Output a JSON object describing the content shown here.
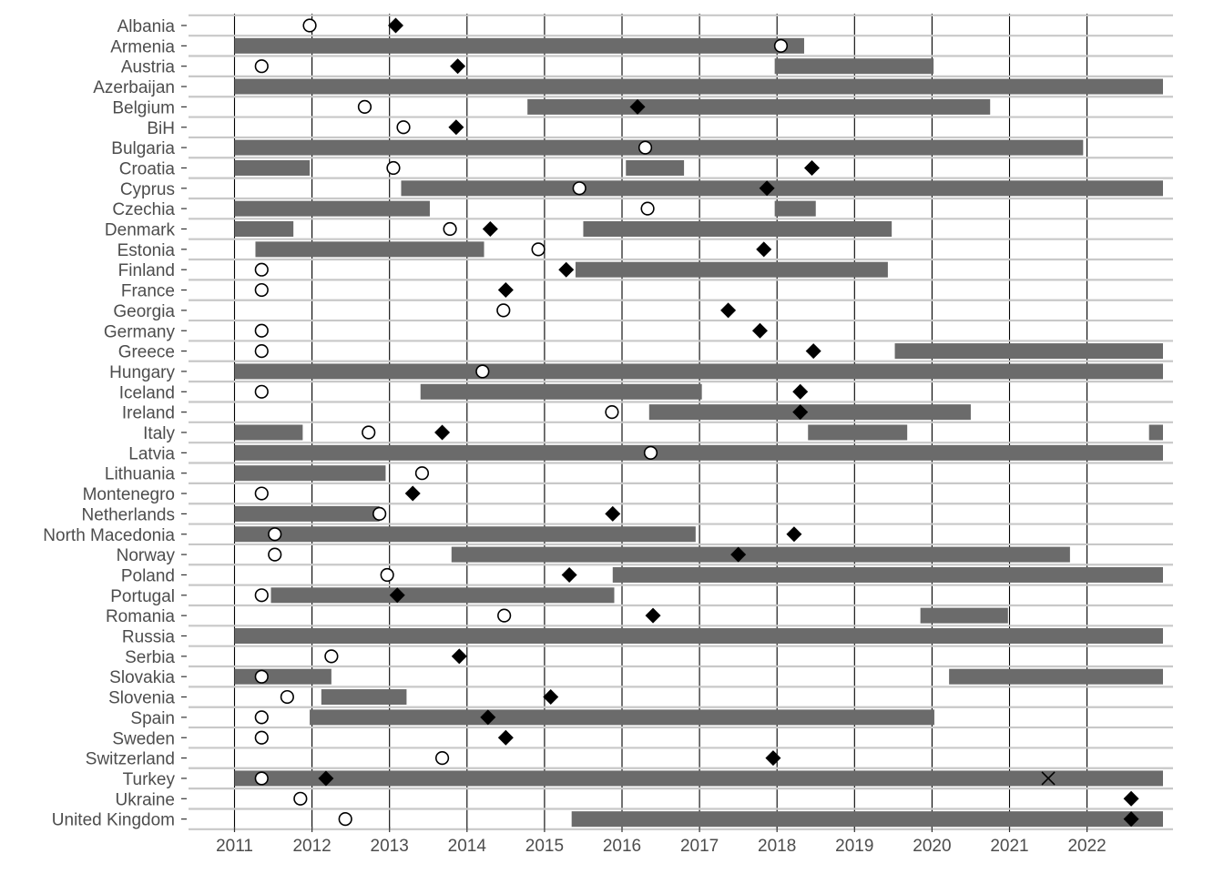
{
  "chart_data": {
    "type": "timeline",
    "title": "",
    "xlabel": "",
    "ylabel": "",
    "xlim": [
      2010.55,
      2023.2
    ],
    "x_ticks": [
      "2011",
      "2012",
      "2013",
      "2014",
      "2015",
      "2016",
      "2017",
      "2018",
      "2019",
      "2020",
      "2021",
      "2022"
    ],
    "grid": "horizontal row lines, vertical lines at each year",
    "legend": "none",
    "colors": {
      "bar": "#6b6b6b",
      "marker": "#000000",
      "rowline": "#c8c8c8",
      "vline": "#000000"
    },
    "rows": [
      {
        "label": "Albania",
        "bars": [],
        "circle": 2011.97,
        "diamond": 2013.08,
        "cross": null
      },
      {
        "label": "Armenia",
        "bars": [
          [
            2011.0,
            2018.35
          ]
        ],
        "circle": 2018.05,
        "diamond": null,
        "cross": null
      },
      {
        "label": "Austria",
        "bars": [
          [
            2017.97,
            2020.02
          ]
        ],
        "circle": 2011.35,
        "diamond": 2013.88,
        "cross": null
      },
      {
        "label": "Azerbaijan",
        "bars": [
          [
            2011.0,
            2022.98
          ]
        ],
        "circle": null,
        "diamond": null,
        "cross": null
      },
      {
        "label": "Belgium",
        "bars": [
          [
            2014.78,
            2020.75
          ]
        ],
        "circle": 2012.68,
        "diamond": 2016.2,
        "cross": null
      },
      {
        "label": "BiH",
        "bars": [],
        "circle": 2013.18,
        "diamond": 2013.86,
        "cross": null
      },
      {
        "label": "Bulgaria",
        "bars": [
          [
            2011.0,
            2021.95
          ]
        ],
        "circle": 2016.3,
        "diamond": null,
        "cross": null
      },
      {
        "label": "Croatia",
        "bars": [
          [
            2011.0,
            2011.97
          ],
          [
            2016.05,
            2016.8
          ]
        ],
        "circle": 2013.05,
        "diamond": 2018.45,
        "cross": null
      },
      {
        "label": "Cyprus",
        "bars": [
          [
            2013.15,
            2022.98
          ]
        ],
        "circle": 2015.45,
        "diamond": 2017.87,
        "cross": null
      },
      {
        "label": "Czechia",
        "bars": [
          [
            2011.0,
            2013.52
          ],
          [
            2017.97,
            2018.5
          ]
        ],
        "circle": 2016.33,
        "diamond": null,
        "cross": null
      },
      {
        "label": "Denmark",
        "bars": [
          [
            2011.0,
            2011.76
          ],
          [
            2015.5,
            2019.48
          ]
        ],
        "circle": 2013.78,
        "diamond": 2014.3,
        "cross": null
      },
      {
        "label": "Estonia",
        "bars": [
          [
            2011.27,
            2014.22
          ]
        ],
        "circle": 2014.92,
        "diamond": 2017.83,
        "cross": null
      },
      {
        "label": "Finland",
        "bars": [
          [
            2015.4,
            2019.43
          ]
        ],
        "circle": 2011.35,
        "diamond": 2015.28,
        "cross": null
      },
      {
        "label": "France",
        "bars": [],
        "circle": 2011.35,
        "diamond": 2014.5,
        "cross": null
      },
      {
        "label": "Georgia",
        "bars": [],
        "circle": 2014.47,
        "diamond": 2017.37,
        "cross": null
      },
      {
        "label": "Germany",
        "bars": [],
        "circle": 2011.35,
        "diamond": 2017.78,
        "cross": null
      },
      {
        "label": "Greece",
        "bars": [
          [
            2019.52,
            2022.98
          ]
        ],
        "circle": 2011.35,
        "diamond": 2018.47,
        "cross": null
      },
      {
        "label": "Hungary",
        "bars": [
          [
            2011.0,
            2022.98
          ]
        ],
        "circle": 2014.2,
        "diamond": null,
        "cross": null
      },
      {
        "label": "Iceland",
        "bars": [
          [
            2013.4,
            2017.03
          ]
        ],
        "circle": 2011.35,
        "diamond": 2018.3,
        "cross": null
      },
      {
        "label": "Ireland",
        "bars": [
          [
            2016.35,
            2020.5
          ]
        ],
        "circle": 2015.87,
        "diamond": 2018.3,
        "cross": null
      },
      {
        "label": "Italy",
        "bars": [
          [
            2011.0,
            2011.88
          ],
          [
            2018.4,
            2019.68
          ],
          [
            2022.8,
            2022.98
          ]
        ],
        "circle": 2012.73,
        "diamond": 2013.68,
        "cross": null
      },
      {
        "label": "Latvia",
        "bars": [
          [
            2011.0,
            2022.98
          ]
        ],
        "circle": 2016.37,
        "diamond": null,
        "cross": null
      },
      {
        "label": "Lithuania",
        "bars": [
          [
            2011.0,
            2012.95
          ]
        ],
        "circle": 2013.42,
        "diamond": null,
        "cross": null
      },
      {
        "label": "Montenegro",
        "bars": [],
        "circle": 2011.35,
        "diamond": 2013.3,
        "cross": null
      },
      {
        "label": "Netherlands",
        "bars": [
          [
            2011.0,
            2012.87
          ]
        ],
        "circle": 2012.87,
        "diamond": 2015.88,
        "cross": null
      },
      {
        "label": "North Macedonia",
        "bars": [
          [
            2011.0,
            2016.95
          ]
        ],
        "circle": 2011.52,
        "diamond": 2018.22,
        "cross": null
      },
      {
        "label": "Norway",
        "bars": [
          [
            2013.8,
            2021.78
          ]
        ],
        "circle": 2011.52,
        "diamond": 2017.5,
        "cross": null
      },
      {
        "label": "Poland",
        "bars": [
          [
            2015.88,
            2022.98
          ]
        ],
        "circle": 2012.97,
        "diamond": 2015.32,
        "cross": null
      },
      {
        "label": "Portugal",
        "bars": [
          [
            2011.47,
            2015.9
          ]
        ],
        "circle": 2011.35,
        "diamond": 2013.1,
        "cross": null
      },
      {
        "label": "Romania",
        "bars": [
          [
            2019.85,
            2020.98
          ]
        ],
        "circle": 2014.48,
        "diamond": 2016.4,
        "cross": null
      },
      {
        "label": "Russia",
        "bars": [
          [
            2011.0,
            2022.98
          ]
        ],
        "circle": null,
        "diamond": null,
        "cross": null
      },
      {
        "label": "Serbia",
        "bars": [],
        "circle": 2012.25,
        "diamond": 2013.9,
        "cross": null
      },
      {
        "label": "Slovakia",
        "bars": [
          [
            2011.0,
            2012.25
          ],
          [
            2020.22,
            2022.98
          ]
        ],
        "circle": 2011.35,
        "diamond": null,
        "cross": null
      },
      {
        "label": "Slovenia",
        "bars": [
          [
            2012.12,
            2013.22
          ]
        ],
        "circle": 2011.68,
        "diamond": 2015.08,
        "cross": null
      },
      {
        "label": "Spain",
        "bars": [
          [
            2011.97,
            2020.03
          ]
        ],
        "circle": 2011.35,
        "diamond": 2014.27,
        "cross": null
      },
      {
        "label": "Sweden",
        "bars": [],
        "circle": 2011.35,
        "diamond": 2014.5,
        "cross": null
      },
      {
        "label": "Switzerland",
        "bars": [],
        "circle": 2013.68,
        "diamond": 2017.95,
        "cross": null
      },
      {
        "label": "Turkey",
        "bars": [
          [
            2011.0,
            2022.98
          ]
        ],
        "circle": 2011.35,
        "diamond": 2012.18,
        "cross": 2021.5
      },
      {
        "label": "Ukraine",
        "bars": [],
        "circle": 2011.85,
        "diamond": 2022.57,
        "cross": null
      },
      {
        "label": "United Kingdom",
        "bars": [
          [
            2015.35,
            2022.98
          ]
        ],
        "circle": 2012.43,
        "diamond": 2022.57,
        "cross": null
      }
    ]
  }
}
